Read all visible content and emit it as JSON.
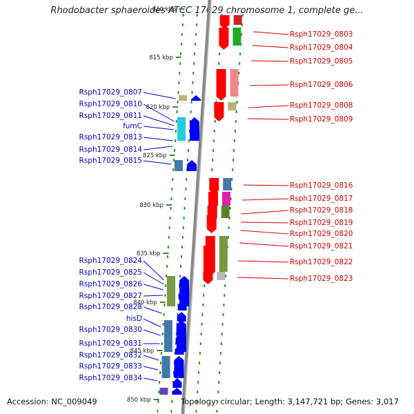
{
  "title": "Rhodobacter sphaeroides ATCC 17029 chromosome 1, complete ge...",
  "footer": {
    "accession": "Accession: NC_009049",
    "topology": "Topology: circular; Length: 3,147,721 bp; Genes: 3,017"
  },
  "colors": {
    "forward_label": "#cc0000",
    "reverse_label": "#0000cc",
    "forward_arrow": "#ff0000",
    "reverse_arrow": "#0000ff",
    "backbone": "#888888",
    "ticks": "#2e8b2e"
  },
  "scale_ticks": [
    "810 kbp",
    "815 kbp",
    "820 kbp",
    "825 kbp",
    "830 kbp",
    "835 kbp",
    "840 kbp",
    "845 kbp",
    "850 kbp"
  ],
  "forward_genes": [
    "Rsph17029_0803",
    "Rsph17029_0804",
    "Rsph17029_0805",
    "Rsph17029_0806",
    "Rsph17029_0808",
    "Rsph17029_0809",
    "Rsph17029_0816",
    "Rsph17029_0817",
    "Rsph17029_0818",
    "Rsph17029_0819",
    "Rsph17029_0820",
    "Rsph17029_0821",
    "Rsph17029_0822",
    "Rsph17029_0823"
  ],
  "reverse_genes": [
    "Rsph17029_0807",
    "Rsph17029_0810",
    "Rsph17029_0811",
    "fumC",
    "Rsph17029_0813",
    "Rsph17029_0814",
    "Rsph17029_0815",
    "Rsph17029_0824",
    "Rsph17029_0825",
    "Rsph17029_0826",
    "Rsph17029_0827",
    "Rsph17029_0828",
    "hisD",
    "Rsph17029_0830",
    "Rsph17029_0831",
    "Rsph17029_0832",
    "Rsph17029_0833",
    "Rsph17029_0834"
  ]
}
